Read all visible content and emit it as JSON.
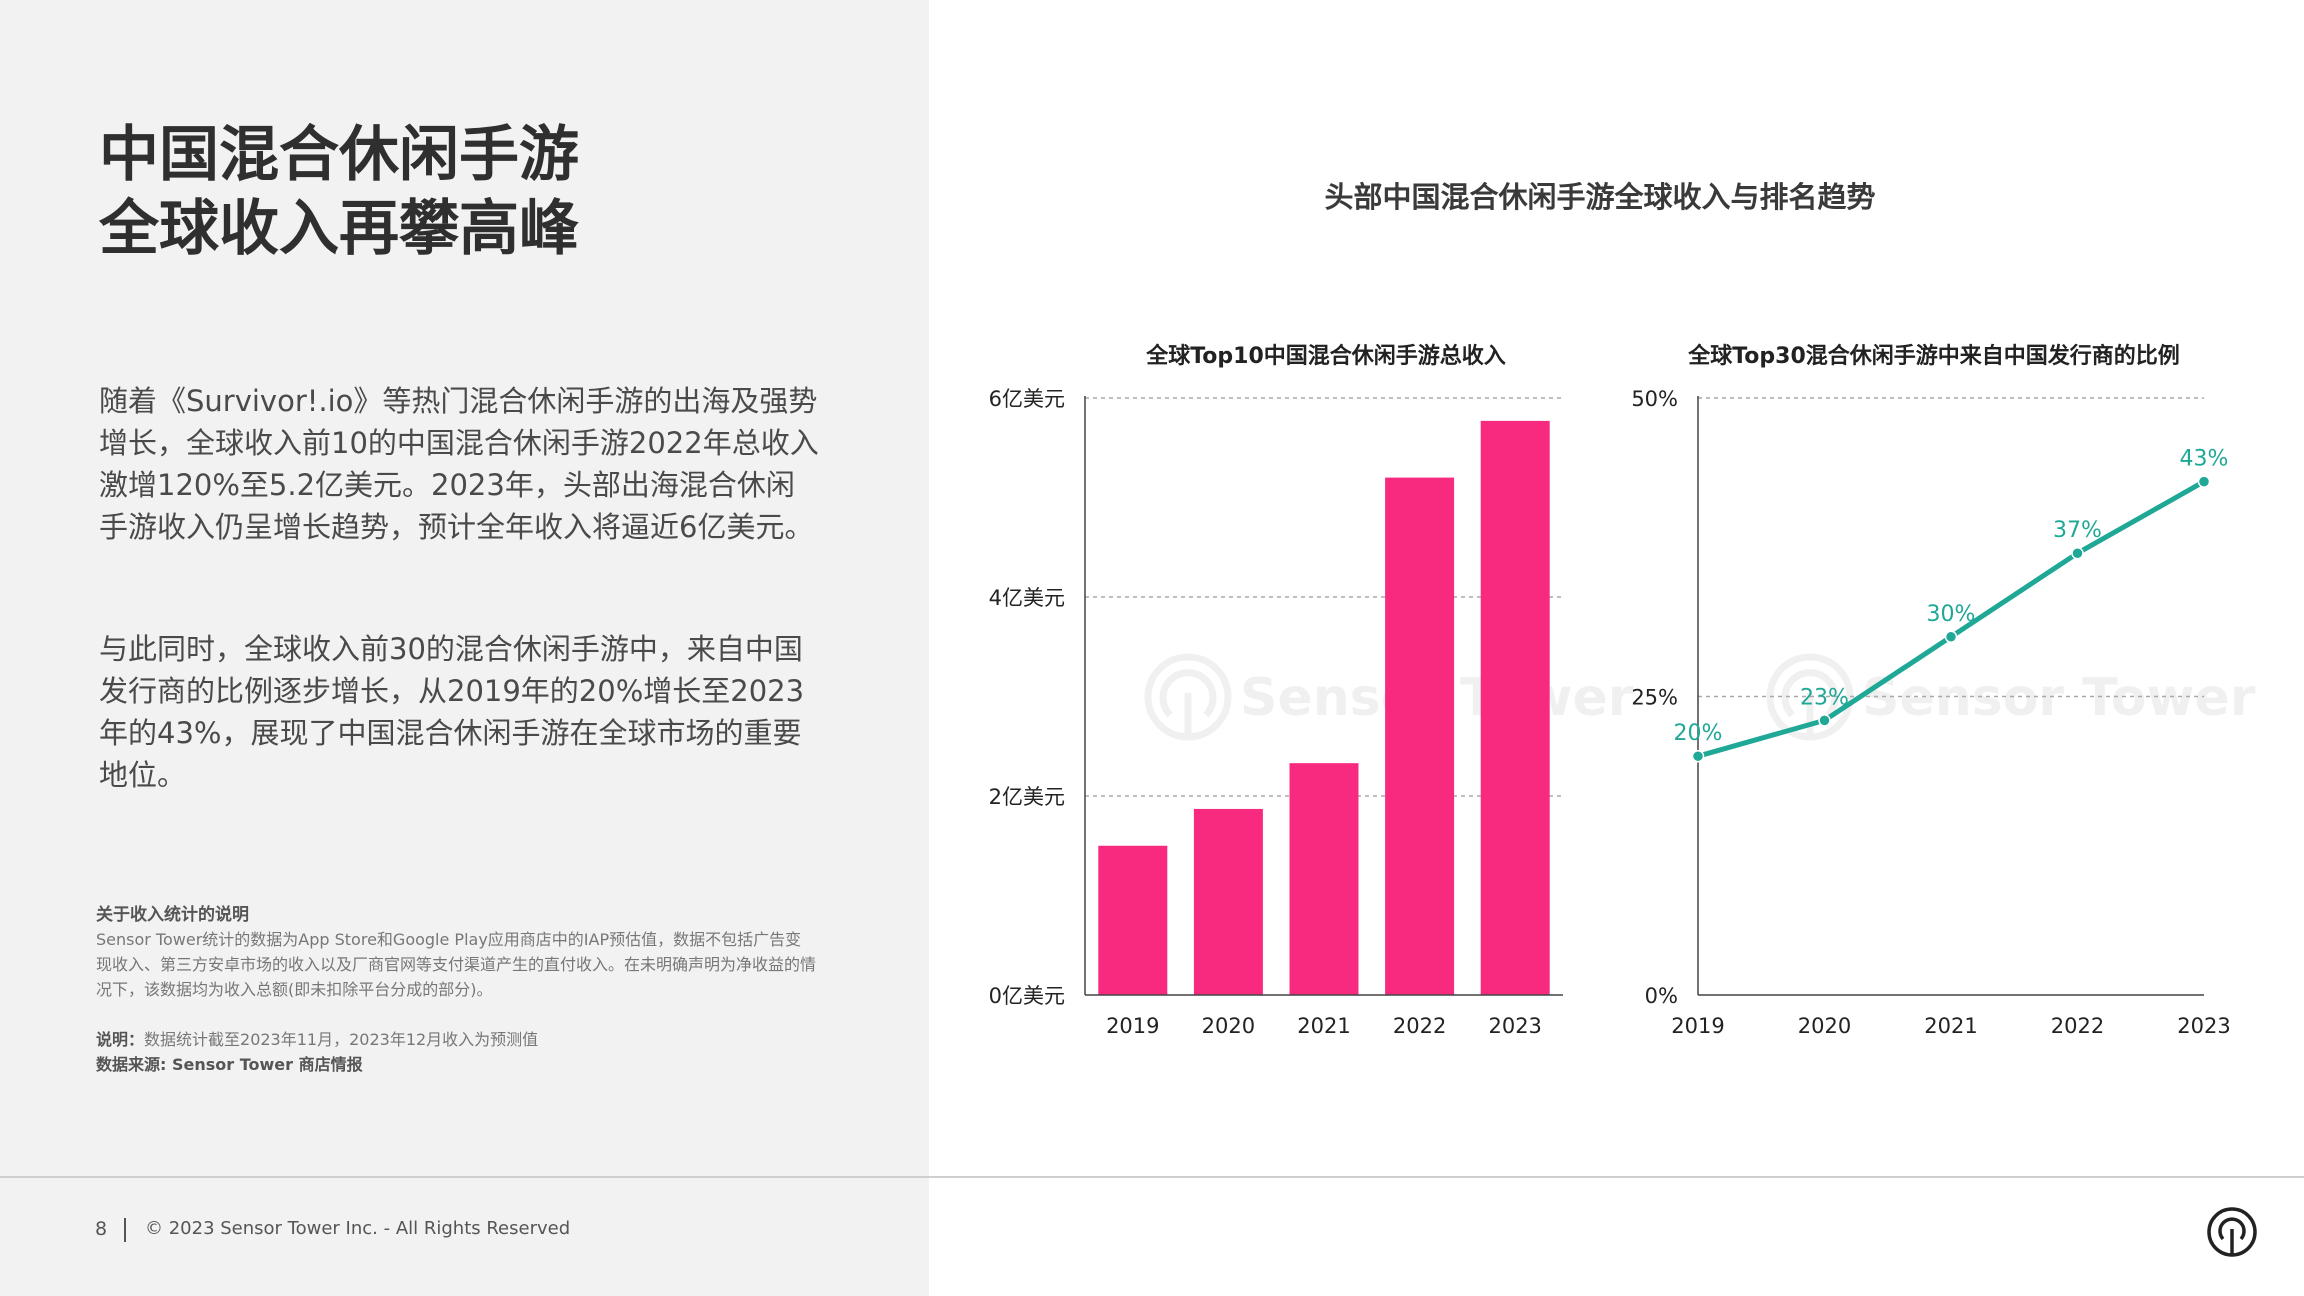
{
  "page": {
    "title_lines": [
      "中国混合休闲手游",
      "全球收入再攀高峰"
    ],
    "paragraph1": "随着《Survivor!.io》等热门混合休闲手游的出海及强势增长，全球收入前10的中国混合休闲手游2022年总收入激增120%至5.2亿美元。2023年，头部出海混合休闲手游收入仍呈增长趋势，预计全年收入将逼近6亿美元。",
    "paragraph2": "与此同时，全球收入前30的混合休闲手游中，来自中国发行商的比例逐步增长，从2019年的20%增长至2023年的43%，展现了中国混合休闲手游在全球市场的重要地位。",
    "note_heading": "关于收入统计的说明",
    "note_text": "Sensor Tower统计的数据为App Store和Google Play应用商店中的IAP预估值，数据不包括广告变现收入、第三方安卓市场的收入以及厂商官网等支付渠道产生的直付收入。在未明确声明为净收益的情况下，该数据均为收入总额(即未扣除平台分成的部分)。",
    "explain_label": "说明：",
    "explain_text": "数据统计截至2023年11月，2023年12月收入为预测值",
    "source_text": "数据来源: Sensor Tower 商店情报"
  },
  "footer": {
    "page_number": "8",
    "copyright": "© 2023 Sensor Tower Inc. - All Rights Reserved",
    "logo_icon": "sensor-tower-logo-icon"
  },
  "charts_title": "头部中国混合休闲手游全球收入与排名趋势",
  "watermark": "Sensor Tower",
  "chart_data": [
    {
      "type": "bar",
      "title": "全球Top10中国混合休闲手游总收入",
      "categories": [
        "2019",
        "2020",
        "2021",
        "2022",
        "2023"
      ],
      "values": [
        1.5,
        1.87,
        2.33,
        5.2,
        5.77
      ],
      "unit": "亿美元",
      "ylim": [
        0,
        6
      ],
      "yticks": [
        0,
        2,
        4,
        6
      ],
      "ytick_labels": [
        "0亿美元",
        "2亿美元",
        "4亿美元",
        "6亿美元"
      ],
      "xlabel": "",
      "ylabel": "",
      "grid": true,
      "color": "#f72a80"
    },
    {
      "type": "line",
      "title": "全球Top30混合休闲手游中来自中国发行商的比例",
      "x": [
        "2019",
        "2020",
        "2021",
        "2022",
        "2023"
      ],
      "values": [
        20,
        23,
        30,
        37,
        43
      ],
      "data_labels": [
        "20%",
        "23%",
        "30%",
        "37%",
        "43%"
      ],
      "ylim": [
        0,
        50
      ],
      "yticks": [
        0,
        25,
        50
      ],
      "ytick_labels": [
        "0%",
        "25%",
        "50%"
      ],
      "xlabel": "",
      "ylabel": "",
      "grid": true,
      "color": "#1fa896"
    }
  ]
}
